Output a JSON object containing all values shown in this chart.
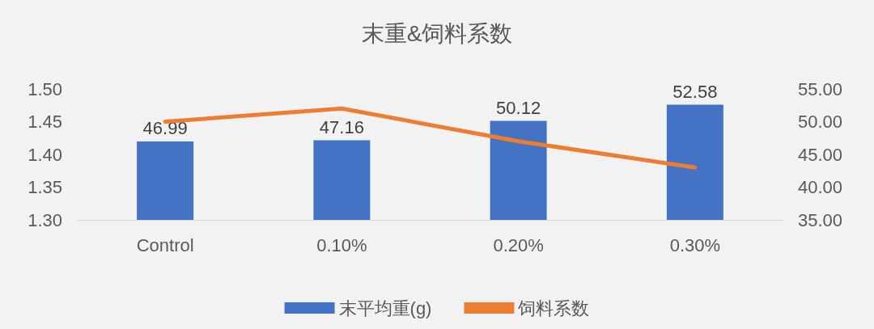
{
  "chart_data": {
    "type": "bar",
    "title": "末重&饲料系数",
    "categories": [
      "Control",
      "0.10%",
      "0.20%",
      "0.30%"
    ],
    "series": [
      {
        "name": "末平均重(g)",
        "axis": "y2",
        "color": "#4472c4",
        "values": [
          46.99,
          47.16,
          50.12,
          52.58
        ],
        "value_labels": [
          "46.99",
          "47.16",
          "50.12",
          "52.58"
        ]
      },
      {
        "name": "饲料系数",
        "type": "line",
        "axis": "y",
        "color": "#ed7d31",
        "values": [
          1.45,
          1.47,
          1.42,
          1.38
        ]
      }
    ],
    "ylim": [
      1.3,
      1.5
    ],
    "yticks": [
      {
        "value": 1.3,
        "label": "1.30"
      },
      {
        "value": 1.35,
        "label": "1.35"
      },
      {
        "value": 1.4,
        "label": "1.40"
      },
      {
        "value": 1.45,
        "label": "1.45"
      },
      {
        "value": 1.5,
        "label": "1.50"
      }
    ],
    "y2lim": [
      35,
      55
    ],
    "y2ticks": [
      {
        "value": 35,
        "label": "35.00"
      },
      {
        "value": 40,
        "label": "40.00"
      },
      {
        "value": 45,
        "label": "45.00"
      },
      {
        "value": 50,
        "label": "50.00"
      },
      {
        "value": 55,
        "label": "55.00"
      }
    ],
    "grid": false,
    "legend": "bottom",
    "marker": "none",
    "line_style": "solid"
  }
}
